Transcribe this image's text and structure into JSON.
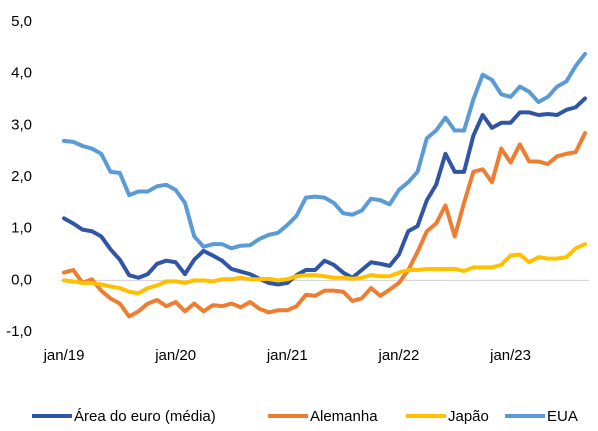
{
  "chart_data": {
    "type": "line",
    "categories": [
      "jan/19",
      null,
      null,
      null,
      null,
      null,
      null,
      null,
      null,
      null,
      null,
      null,
      "jan/20",
      null,
      null,
      null,
      null,
      null,
      null,
      null,
      null,
      null,
      null,
      null,
      "jan/21",
      null,
      null,
      null,
      null,
      null,
      null,
      null,
      null,
      null,
      null,
      null,
      "jan/22",
      null,
      null,
      null,
      null,
      null,
      null,
      null,
      null,
      null,
      null,
      null,
      "jan/23",
      null,
      null,
      null,
      null,
      null,
      null,
      null,
      null
    ],
    "series": [
      {
        "name": "Área do euro (média)",
        "color": "#2f55a4",
        "values": [
          1.2,
          1.1,
          0.98,
          0.95,
          0.85,
          0.6,
          0.4,
          0.1,
          0.05,
          0.12,
          0.32,
          0.38,
          0.35,
          0.12,
          0.4,
          0.57,
          0.48,
          0.38,
          0.22,
          0.17,
          0.12,
          0.03,
          -0.05,
          -0.08,
          -0.05,
          0.1,
          0.2,
          0.2,
          0.38,
          0.3,
          0.15,
          0.05,
          0.2,
          0.35,
          0.32,
          0.28,
          0.5,
          0.95,
          1.05,
          1.55,
          1.85,
          2.45,
          2.1,
          2.1,
          2.8,
          3.2,
          2.95,
          3.05,
          3.05,
          3.25,
          3.25,
          3.2,
          3.22,
          3.2,
          3.3,
          3.35,
          3.52
        ]
      },
      {
        "name": "Alemanha",
        "color": "#ed7d31",
        "values": [
          0.15,
          0.2,
          -0.05,
          0.02,
          -0.2,
          -0.35,
          -0.45,
          -0.7,
          -0.6,
          -0.45,
          -0.38,
          -0.5,
          -0.42,
          -0.6,
          -0.45,
          -0.6,
          -0.48,
          -0.5,
          -0.45,
          -0.52,
          -0.42,
          -0.55,
          -0.62,
          -0.58,
          -0.58,
          -0.5,
          -0.28,
          -0.3,
          -0.2,
          -0.2,
          -0.22,
          -0.4,
          -0.35,
          -0.15,
          -0.3,
          -0.18,
          -0.05,
          0.2,
          0.55,
          0.95,
          1.1,
          1.45,
          0.85,
          1.5,
          2.1,
          2.15,
          1.9,
          2.55,
          2.28,
          2.63,
          2.3,
          2.3,
          2.25,
          2.4,
          2.45,
          2.48,
          2.85
        ]
      },
      {
        "name": "Japão",
        "color": "#ffc000",
        "values": [
          0,
          -0.02,
          -0.05,
          -0.05,
          -0.08,
          -0.12,
          -0.15,
          -0.22,
          -0.25,
          -0.15,
          -0.1,
          -0.02,
          -0.02,
          -0.05,
          0,
          0,
          -0.02,
          0.02,
          0.02,
          0.05,
          0.02,
          0.02,
          0.03,
          0,
          0.02,
          0.08,
          0.1,
          0.1,
          0.08,
          0.05,
          0.05,
          0.03,
          0.05,
          0.1,
          0.08,
          0.08,
          0.15,
          0.2,
          0.2,
          0.22,
          0.22,
          0.22,
          0.22,
          0.18,
          0.25,
          0.25,
          0.25,
          0.3,
          0.48,
          0.5,
          0.35,
          0.45,
          0.42,
          0.42,
          0.45,
          0.62,
          0.7
        ]
      },
      {
        "name": "EUA",
        "color": "#5b9bd5",
        "values": [
          2.7,
          2.68,
          2.6,
          2.55,
          2.45,
          2.1,
          2.08,
          1.65,
          1.72,
          1.72,
          1.82,
          1.85,
          1.75,
          1.5,
          0.85,
          0.65,
          0.7,
          0.7,
          0.62,
          0.67,
          0.68,
          0.8,
          0.88,
          0.92,
          1.07,
          1.25,
          1.6,
          1.62,
          1.6,
          1.5,
          1.3,
          1.27,
          1.35,
          1.58,
          1.55,
          1.47,
          1.75,
          1.9,
          2.1,
          2.75,
          2.9,
          3.15,
          2.9,
          2.9,
          3.5,
          3.98,
          3.88,
          3.6,
          3.55,
          3.75,
          3.65,
          3.45,
          3.55,
          3.75,
          3.85,
          4.15,
          4.38
        ]
      }
    ],
    "ylim": [
      -1,
      5
    ],
    "yticks": [
      {
        "value": 5,
        "label": "5,0"
      },
      {
        "value": 4,
        "label": "4,0"
      },
      {
        "value": 3,
        "label": "3,0"
      },
      {
        "value": 2,
        "label": "2,0"
      },
      {
        "value": 1,
        "label": "1,0"
      },
      {
        "value": 0,
        "label": "0,0"
      },
      {
        "value": -1,
        "label": "-1,0"
      }
    ]
  }
}
